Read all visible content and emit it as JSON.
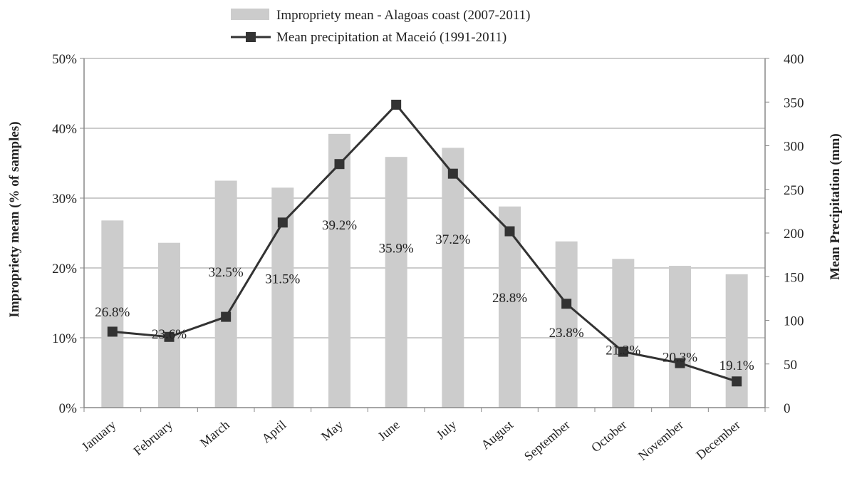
{
  "chart_data": {
    "type": "bar+line",
    "categories": [
      "January",
      "February",
      "March",
      "April",
      "May",
      "June",
      "July",
      "August",
      "September",
      "October",
      "November",
      "December"
    ],
    "series": [
      {
        "name": "Impropriety mean - Alagoas coast (2007-2011)",
        "kind": "bar",
        "axis": "left",
        "values": [
          26.8,
          23.6,
          32.5,
          31.5,
          39.2,
          35.9,
          37.2,
          28.8,
          23.8,
          21.3,
          20.3,
          19.1
        ],
        "labels": [
          "26.8%",
          "23.6%",
          "32.5%",
          "31.5%",
          "39.2%",
          "35.9%",
          "37.2%",
          "28.8%",
          "23.8%",
          "21.3%",
          "20.3%",
          "19.1%"
        ],
        "color": "#cccccc"
      },
      {
        "name": "Mean precipitation at Maceió (1991-2011)",
        "kind": "line",
        "axis": "right",
        "marker": "square",
        "values": [
          87,
          81,
          104,
          212,
          279,
          347,
          268,
          202,
          119,
          64,
          51,
          30
        ],
        "color": "#333333"
      }
    ],
    "y_left": {
      "label": "Impropriety mean (% of samples)",
      "lim": [
        0,
        50
      ],
      "ticks": [
        0,
        10,
        20,
        30,
        40,
        50
      ],
      "tick_labels": [
        "0%",
        "10%",
        "20%",
        "30%",
        "40%",
        "50%"
      ]
    },
    "y_right": {
      "label": "Mean Precipitation (mm)",
      "lim": [
        0,
        400
      ],
      "ticks": [
        0,
        50,
        100,
        150,
        200,
        250,
        300,
        350,
        400
      ],
      "tick_labels": [
        "0",
        "50",
        "100",
        "150",
        "200",
        "250",
        "300",
        "350",
        "400"
      ]
    },
    "grid": true,
    "legend": "top"
  }
}
